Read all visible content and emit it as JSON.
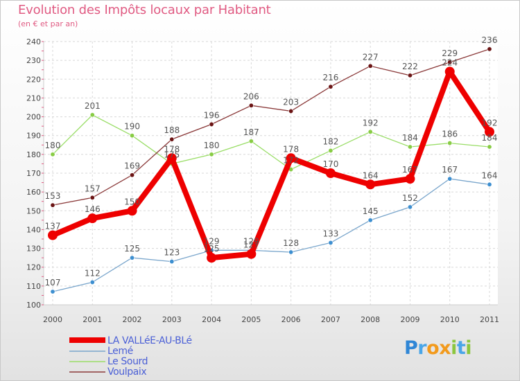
{
  "header": {
    "title": "Evolution des Impôts locaux par Habitant",
    "subtitle": "(en € et par an)"
  },
  "logo": {
    "text": "Proxiti",
    "letters": [
      "P",
      "r",
      "o",
      "x",
      "i",
      "t",
      "i"
    ],
    "colors": [
      "#2f86d6",
      "#4aa6e8",
      "#f29a1c",
      "#f29a1c",
      "#8cc63f",
      "#4aa6e8",
      "#8cc63f"
    ]
  },
  "chart_data": {
    "type": "line",
    "title": "Evolution des Impôts locaux par Habitant",
    "subtitle": "(en € et par an)",
    "xlabel": "",
    "ylabel": "",
    "categories": [
      "2000",
      "2001",
      "2002",
      "2003",
      "2004",
      "2005",
      "2006",
      "2007",
      "2008",
      "2009",
      "2010",
      "2011"
    ],
    "ylim": [
      100,
      240
    ],
    "yticks": [
      100,
      110,
      120,
      130,
      140,
      150,
      160,
      170,
      180,
      190,
      200,
      210,
      220,
      230,
      240
    ],
    "grid": true,
    "legend_position": "bottom-left",
    "series": [
      {
        "name": "LA VALLéE-AU-BLé",
        "color": "#ee0000",
        "thick": true,
        "values": [
          137,
          146,
          150,
          178,
          125,
          127,
          178,
          170,
          164,
          167,
          224,
          192
        ],
        "labels": [
          "137",
          "146",
          "150",
          "178",
          "125",
          "127",
          "178",
          "170",
          "164",
          "167",
          "224",
          "192"
        ]
      },
      {
        "name": "Lemé",
        "color": "#7aa6cc",
        "marker": "#3d8fd0",
        "thick": false,
        "values": [
          107,
          112,
          125,
          123,
          129,
          129,
          128,
          133,
          145,
          152,
          167,
          164
        ],
        "labels": [
          "107",
          "112",
          "125",
          "123",
          "129",
          "129",
          "128",
          "133",
          "145",
          "152",
          "167",
          "164"
        ]
      },
      {
        "name": "Le Sourd",
        "color": "#99dd66",
        "marker": "#88cc44",
        "thick": false,
        "values": [
          180,
          201,
          190,
          175,
          180,
          187,
          172,
          182,
          192,
          184,
          186,
          184
        ],
        "labels": [
          "180",
          "201",
          "190",
          "175",
          "180",
          "187",
          "172",
          "182",
          "192",
          "184",
          "186",
          "184"
        ]
      },
      {
        "name": "Voulpaix",
        "color": "#8b3a3a",
        "marker": "#6b1414",
        "thick": false,
        "values": [
          153,
          157,
          169,
          188,
          196,
          206,
          203,
          216,
          227,
          222,
          229,
          236
        ],
        "labels": [
          "153",
          "157",
          "169",
          "188",
          "196",
          "206",
          "203",
          "216",
          "227",
          "222",
          "229",
          "236"
        ]
      }
    ]
  }
}
